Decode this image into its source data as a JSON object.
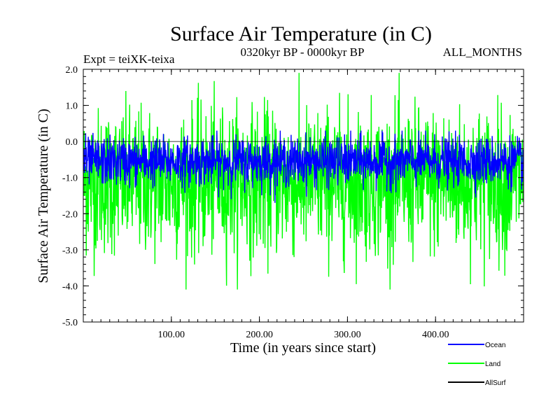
{
  "chart_data": {
    "type": "line",
    "title": "Surface Air Temperature (in C)",
    "subtitle_left": "Expt = teiXK-teixa",
    "subtitle_center": "0320kyr BP - 0000kyr BP",
    "subtitle_right": "ALL_MONTHS",
    "xlabel": "Time (in years since start)",
    "ylabel": "Surface Air Temperature (in C)",
    "xlim": [
      0,
      500
    ],
    "ylim": [
      -5.0,
      2.0
    ],
    "x_ticks": [
      100,
      200,
      300,
      400
    ],
    "x_tick_labels": [
      "100.00",
      "200.00",
      "300.00",
      "400.00"
    ],
    "y_ticks": [
      2.0,
      1.0,
      0.0,
      -1.0,
      -2.0,
      -3.0,
      -4.0,
      -5.0
    ],
    "y_tick_labels": [
      "2.0",
      "1.0",
      "0.0",
      "-1.0",
      "-2.0",
      "-3.0",
      "-4.0",
      "-5.0"
    ],
    "grid": false,
    "legend_position": "bottom-right",
    "series": [
      {
        "name": "Land",
        "color": "#00ff00",
        "mean": -1.1,
        "min": -4.1,
        "max": 1.9
      },
      {
        "name": "Ocean",
        "color": "#0000ff",
        "mean": -0.55,
        "min": -1.7,
        "max": 0.3
      },
      {
        "name": "AllSurf",
        "color": "#000000",
        "mean": -0.6,
        "min": -2.0,
        "max": 0.8
      }
    ],
    "legend": [
      "Ocean",
      "Land",
      "AllSurf"
    ]
  }
}
